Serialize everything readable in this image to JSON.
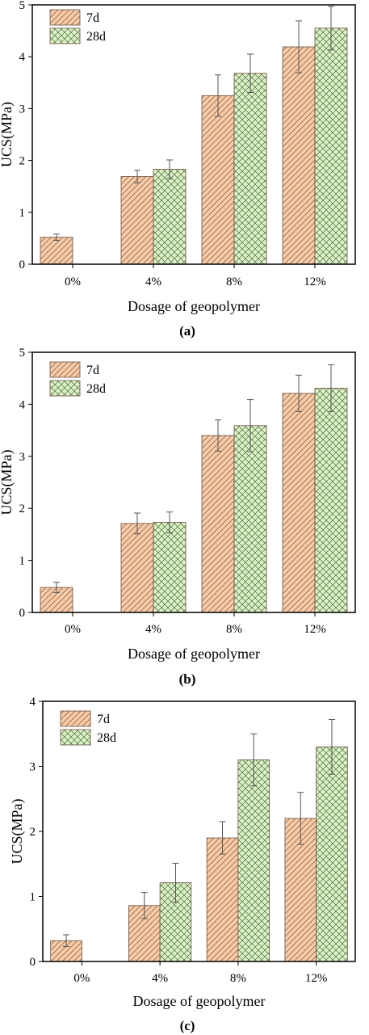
{
  "chart_data": [
    {
      "type": "bar",
      "panel_label": "(a)",
      "xlabel": "Dosage of geopolymer",
      "ylabel": "UCS(MPa)",
      "ylim": [
        0,
        5
      ],
      "yticks": [
        "0",
        "1",
        "2",
        "3",
        "4",
        "5"
      ],
      "categories": [
        "0%",
        "4%",
        "8%",
        "12%"
      ],
      "legend_placement": "top-left",
      "series": [
        {
          "name": "7d",
          "values": [
            0.52,
            1.69,
            3.25,
            4.19
          ],
          "errors": [
            0.06,
            0.12,
            0.4,
            0.5
          ],
          "color": "#f9cba6",
          "pattern": "diagonal"
        },
        {
          "name": "28d",
          "values": [
            null,
            1.83,
            3.68,
            4.55
          ],
          "errors": [
            null,
            0.18,
            0.37,
            0.42
          ],
          "color": "#dcf2c4",
          "pattern": "crosshatch"
        }
      ]
    },
    {
      "type": "bar",
      "panel_label": "(b)",
      "xlabel": "Dosage of geopolymer",
      "ylabel": "UCS(MPa)",
      "ylim": [
        0,
        5
      ],
      "yticks": [
        "0",
        "1",
        "2",
        "3",
        "4",
        "5"
      ],
      "categories": [
        "0%",
        "4%",
        "8%",
        "12%"
      ],
      "legend_placement": "top-left",
      "series": [
        {
          "name": "7d",
          "values": [
            0.48,
            1.71,
            3.4,
            4.21
          ],
          "errors": [
            0.1,
            0.2,
            0.3,
            0.35
          ],
          "color": "#f9cba6",
          "pattern": "diagonal"
        },
        {
          "name": "28d",
          "values": [
            null,
            1.73,
            3.59,
            4.31
          ],
          "errors": [
            null,
            0.2,
            0.5,
            0.45
          ],
          "color": "#dcf2c4",
          "pattern": "crosshatch"
        }
      ]
    },
    {
      "type": "bar",
      "panel_label": "(c)",
      "xlabel": "Dosage of geopolymer",
      "ylabel": "UCS(MPa)",
      "ylim": [
        0,
        4
      ],
      "yticks": [
        "0",
        "1",
        "2",
        "3",
        "4"
      ],
      "categories": [
        "0%",
        "4%",
        "8%",
        "12%"
      ],
      "legend_placement": "top-left",
      "series": [
        {
          "name": "7d",
          "values": [
            0.32,
            0.86,
            1.9,
            2.2
          ],
          "errors": [
            0.09,
            0.2,
            0.25,
            0.4
          ],
          "color": "#f9cba6",
          "pattern": "diagonal"
        },
        {
          "name": "28d",
          "values": [
            null,
            1.21,
            3.1,
            3.3
          ],
          "errors": [
            null,
            0.3,
            0.4,
            0.42
          ],
          "color": "#dcf2c4",
          "pattern": "crosshatch"
        }
      ]
    }
  ]
}
